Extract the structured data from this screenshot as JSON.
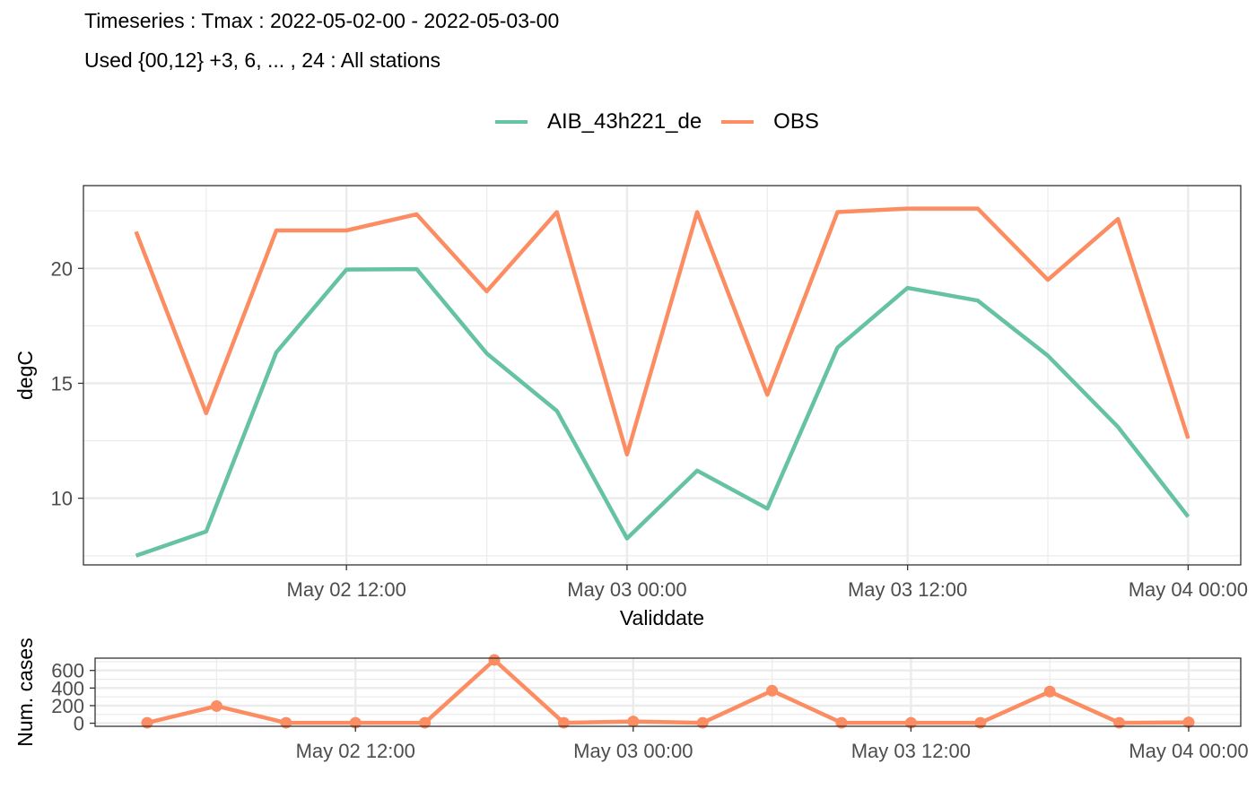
{
  "title": {
    "line1": "Timeseries : Tmax : 2022-05-02-00 - 2022-05-03-00",
    "line2": "Used {00,12} +3, 6, ... , 24 : All stations"
  },
  "colors": {
    "AIB_43h221_de": "#66c2a5",
    "OBS": "#fc8d62"
  },
  "chart_data": [
    {
      "type": "line",
      "xlabel": "Validdate",
      "ylabel": "degC",
      "x": [
        "2022-05-02 03:00",
        "2022-05-02 06:00",
        "2022-05-02 09:00",
        "2022-05-02 12:00",
        "2022-05-02 15:00",
        "2022-05-02 18:00",
        "2022-05-02 21:00",
        "2022-05-03 00:00",
        "2022-05-03 03:00",
        "2022-05-03 06:00",
        "2022-05-03 09:00",
        "2022-05-03 12:00",
        "2022-05-03 15:00",
        "2022-05-03 18:00",
        "2022-05-03 21:00",
        "2022-05-04 00:00"
      ],
      "xlim": [
        "2022-05-02 00:45",
        "2022-05-04 02:15"
      ],
      "x_ticks": [
        "May 02 12:00",
        "May 03 00:00",
        "May 03 12:00",
        "May 04 00:00"
      ],
      "y_ticks": [
        10,
        15,
        20
      ],
      "ylim": [
        7.1,
        23.6
      ],
      "grid": true,
      "legend_position": "top",
      "series": [
        {
          "name": "AIB_43h221_de",
          "values": [
            7.5,
            8.55,
            16.35,
            19.95,
            19.97,
            16.3,
            13.8,
            8.25,
            11.2,
            9.55,
            16.55,
            19.15,
            18.6,
            16.2,
            13.1,
            9.2
          ]
        },
        {
          "name": "OBS",
          "values": [
            21.6,
            13.7,
            21.65,
            21.65,
            22.35,
            19.0,
            22.45,
            11.9,
            22.45,
            14.5,
            22.45,
            22.6,
            22.6,
            19.5,
            22.15,
            12.6
          ]
        }
      ]
    },
    {
      "type": "line",
      "ylabel": "Num. cases",
      "x": [
        "2022-05-02 03:00",
        "2022-05-02 06:00",
        "2022-05-02 09:00",
        "2022-05-02 12:00",
        "2022-05-02 15:00",
        "2022-05-02 18:00",
        "2022-05-02 21:00",
        "2022-05-03 00:00",
        "2022-05-03 03:00",
        "2022-05-03 06:00",
        "2022-05-03 09:00",
        "2022-05-03 12:00",
        "2022-05-03 15:00",
        "2022-05-03 18:00",
        "2022-05-03 21:00",
        "2022-05-04 00:00"
      ],
      "x_ticks": [
        "May 02 12:00",
        "May 03 00:00",
        "May 03 12:00",
        "May 04 00:00"
      ],
      "y_ticks": [
        0,
        200,
        400,
        600
      ],
      "ylim": [
        -35,
        740
      ],
      "grid": true,
      "series": [
        {
          "name": "OBS",
          "values": [
            5,
            195,
            5,
            5,
            5,
            720,
            5,
            20,
            5,
            370,
            5,
            5,
            5,
            360,
            5,
            10
          ]
        }
      ]
    }
  ]
}
